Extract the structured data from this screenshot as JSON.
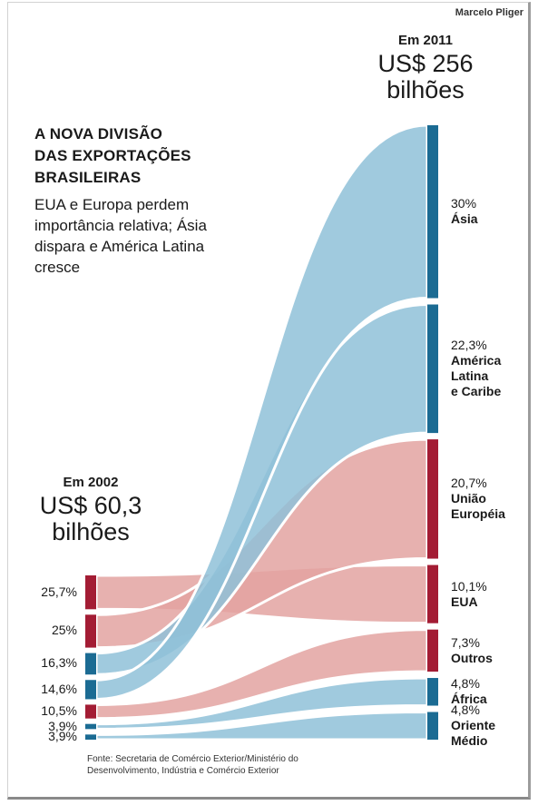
{
  "credit": "Marcelo Pliger",
  "title_lines": [
    "A NOVA DIVISÃO",
    "DAS EXPORTAÇÕES",
    "BRASILEIRAS"
  ],
  "subtitle": "EUA e Europa perdem importância relativa; Ásia dispara e América Latina cresce",
  "start": {
    "year_label": "Em 2002",
    "total": "US$ 60,3",
    "unit": "bilhões"
  },
  "end": {
    "year_label": "Em 2011",
    "total": "US$ 256",
    "unit": "bilhões"
  },
  "source": "Fonte: Secretaria de Comércio Exterior/Ministério do Desenvolvimento, Indústria e Comércio Exterior",
  "colors": {
    "blue": "#8fc1d8",
    "blue_bar": "#1b6b93",
    "red": "#e3a3a1",
    "red_bar": "#a31c34"
  },
  "chart_data": {
    "type": "sankey",
    "start_total_billion_usd": 60.3,
    "end_total_billion_usd": 256,
    "flows": [
      {
        "region": "Ásia",
        "value_2002": "14,6%",
        "value_2011": "30%",
        "start": 14.6,
        "end": 30,
        "color": "blue"
      },
      {
        "region": "América Latina e Caribe",
        "value_2002": "16,3%",
        "value_2011": "22,3%",
        "start": 16.3,
        "end": 22.3,
        "color": "blue"
      },
      {
        "region": "União Européia",
        "value_2002": "25%",
        "value_2011": "20,7%",
        "start": 25,
        "end": 20.7,
        "color": "red"
      },
      {
        "region": "EUA",
        "value_2002": "25,7%",
        "value_2011": "10,1%",
        "start": 25.7,
        "end": 10.1,
        "color": "red"
      },
      {
        "region": "Outros",
        "value_2002": "10,5%",
        "value_2011": "7,3%",
        "start": 10.5,
        "end": 7.3,
        "color": "red"
      },
      {
        "region": "África",
        "value_2002": "3,9%",
        "value_2011": "4,8%",
        "start": 3.9,
        "end": 4.8,
        "color": "blue"
      },
      {
        "region": "Oriente Médio",
        "value_2002": "3,9%",
        "value_2011": "4,8%",
        "start": 3.9,
        "end": 4.8,
        "color": "blue"
      }
    ],
    "left_order": [
      "EUA",
      "União Européia",
      "América Latina e Caribe",
      "Ásia",
      "Outros",
      "África",
      "Oriente Médio"
    ],
    "right_labels": [
      {
        "pct": "30%",
        "name_lines": [
          "Ásia"
        ]
      },
      {
        "pct": "22,3%",
        "name_lines": [
          "América",
          "Latina",
          "e Caribe"
        ]
      },
      {
        "pct": "20,7%",
        "name_lines": [
          "União",
          "Européia"
        ]
      },
      {
        "pct": "10,1%",
        "name_lines": [
          "EUA"
        ]
      },
      {
        "pct": "7,3%",
        "name_lines": [
          "Outros"
        ]
      },
      {
        "pct": "4,8%",
        "name_lines": [
          "África"
        ]
      },
      {
        "pct": "4,8%",
        "name_lines": [
          "Oriente",
          "Médio"
        ]
      }
    ]
  }
}
